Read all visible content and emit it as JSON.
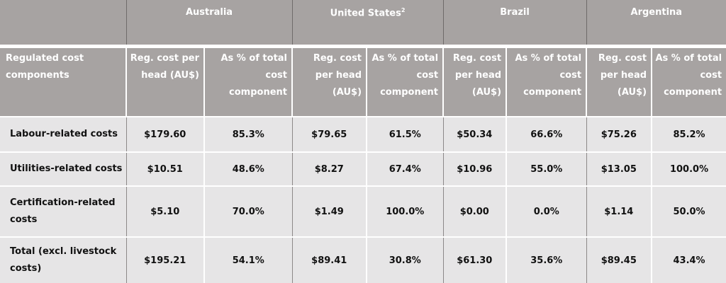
{
  "countries": [
    "Australia",
    "United States",
    "Brazil",
    "Argentina"
  ],
  "us_superscript": "2",
  "header": {
    "first": "Regulated cost components",
    "reg_cost": "Reg. cost per head (AU$)",
    "pct_total": "As % of total cost component"
  },
  "rows": [
    {
      "label": "Labour-related costs",
      "values": [
        "$179.60",
        "85.3%",
        "$79.65",
        "61.5%",
        "$50.34",
        "66.6%",
        "$75.26",
        "85.2%"
      ]
    },
    {
      "label": "Utilities-related costs",
      "values": [
        "$10.51",
        "48.6%",
        "$8.27",
        "67.4%",
        "$10.96",
        "55.0%",
        "$13.05",
        "100.0%"
      ]
    },
    {
      "label": "Certification-related costs",
      "values": [
        "$5.10",
        "70.0%",
        "$1.49",
        "100.0%",
        "$0.00",
        "0.0%",
        "$1.14",
        "50.0%"
      ]
    },
    {
      "label": "Total (excl. livestock costs)",
      "values": [
        "$195.21",
        "54.1%",
        "$89.41",
        "30.8%",
        "$61.30",
        "35.6%",
        "$89.45",
        "43.4%"
      ]
    }
  ],
  "colors": {
    "header_bg": "#a7a3a2",
    "body_bg": "#e6e5e6",
    "header_text": "#ffffff",
    "body_text": "#111111"
  }
}
